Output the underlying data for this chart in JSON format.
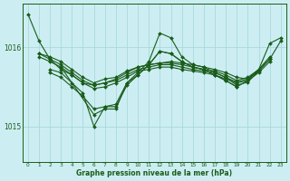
{
  "background_color": "#cceef2",
  "grid_color": "#aad8dc",
  "line_color": "#1a5c1a",
  "marker_color": "#1a5c1a",
  "xlabel": "Graphe pression niveau de la mer (hPa)",
  "x_ticks": [
    0,
    1,
    2,
    3,
    4,
    5,
    6,
    7,
    8,
    9,
    10,
    11,
    12,
    13,
    14,
    15,
    16,
    17,
    18,
    19,
    20,
    21,
    22,
    23
  ],
  "ylim": [
    1014.55,
    1016.55
  ],
  "yticks": [
    1015.0,
    1016.0
  ],
  "series": [
    {
      "x": [
        0,
        1,
        2,
        3,
        4,
        5,
        6,
        7,
        8,
        9,
        10,
        11,
        12,
        13,
        14,
        15,
        16,
        17,
        18,
        19,
        20,
        21,
        22,
        23
      ],
      "y": [
        1016.42,
        1016.08,
        1015.85,
        1015.72,
        1015.65,
        1015.55,
        1015.52,
        1015.55,
        1015.6,
        1015.68,
        1015.75,
        1015.78,
        1015.8,
        1015.82,
        1015.8,
        1015.78,
        1015.75,
        1015.72,
        1015.68,
        1015.62,
        1015.6,
        1015.72,
        1016.05,
        1016.12
      ]
    },
    {
      "x": [
        1,
        2,
        3,
        4,
        5,
        6,
        7,
        8,
        9,
        10,
        11,
        12,
        13,
        14,
        15,
        16,
        17,
        18,
        19,
        20,
        21,
        22
      ],
      "y": [
        1015.92,
        1015.88,
        1015.82,
        1015.72,
        1015.62,
        1015.55,
        1015.6,
        1015.62,
        1015.7,
        1015.75,
        1015.78,
        1015.8,
        1015.8,
        1015.78,
        1015.75,
        1015.72,
        1015.7,
        1015.65,
        1015.58,
        1015.62,
        1015.72,
        1015.88
      ]
    },
    {
      "x": [
        1,
        2,
        3,
        4,
        5,
        6,
        7,
        8,
        9,
        10,
        11,
        12,
        13,
        14,
        15,
        16,
        17,
        18,
        19,
        20,
        21,
        22
      ],
      "y": [
        1015.92,
        1015.85,
        1015.78,
        1015.68,
        1015.58,
        1015.52,
        1015.55,
        1015.58,
        1015.65,
        1015.72,
        1015.75,
        1015.78,
        1015.78,
        1015.75,
        1015.72,
        1015.7,
        1015.68,
        1015.62,
        1015.56,
        1015.6,
        1015.7,
        1015.85
      ]
    },
    {
      "x": [
        1,
        2,
        3,
        4,
        5,
        6,
        7,
        8,
        9,
        10,
        11,
        12,
        13,
        14,
        15,
        16,
        17,
        18,
        19,
        20,
        21,
        22
      ],
      "y": [
        1015.88,
        1015.82,
        1015.75,
        1015.65,
        1015.55,
        1015.48,
        1015.5,
        1015.55,
        1015.62,
        1015.7,
        1015.72,
        1015.75,
        1015.75,
        1015.72,
        1015.7,
        1015.68,
        1015.65,
        1015.6,
        1015.55,
        1015.58,
        1015.68,
        1015.82
      ]
    },
    {
      "x": [
        2,
        3,
        4,
        5,
        6,
        7,
        8,
        9,
        10,
        11,
        12,
        13,
        14,
        15,
        16,
        17,
        18,
        19,
        20,
        21
      ],
      "y": [
        1015.72,
        1015.68,
        1015.55,
        1015.42,
        1015.0,
        1015.25,
        1015.28,
        1015.55,
        1015.68,
        1015.82,
        1016.18,
        1016.12,
        1015.88,
        1015.78,
        1015.75,
        1015.68,
        1015.62,
        1015.52,
        1015.56,
        1015.7
      ]
    },
    {
      "x": [
        2,
        3,
        4,
        5,
        6,
        7,
        8,
        9,
        10,
        11,
        12,
        13,
        14,
        15,
        16,
        17,
        18,
        19
      ],
      "y": [
        1015.68,
        1015.62,
        1015.5,
        1015.38,
        1015.22,
        1015.25,
        1015.25,
        1015.52,
        1015.65,
        1015.78,
        1015.95,
        1015.92,
        1015.82,
        1015.75,
        1015.72,
        1015.65,
        1015.58,
        1015.5
      ]
    },
    {
      "x": [
        3,
        6,
        7,
        8,
        9,
        10,
        11,
        12,
        13,
        14,
        15,
        16,
        17,
        18,
        19,
        20,
        21,
        22,
        23
      ],
      "y": [
        1015.75,
        1015.15,
        1015.22,
        1015.22,
        1015.55,
        1015.65,
        1015.78,
        1015.95,
        1015.92,
        1015.82,
        1015.75,
        1015.72,
        1015.65,
        1015.58,
        1015.5,
        1015.58,
        1015.72,
        1015.85,
        1016.08
      ]
    }
  ]
}
